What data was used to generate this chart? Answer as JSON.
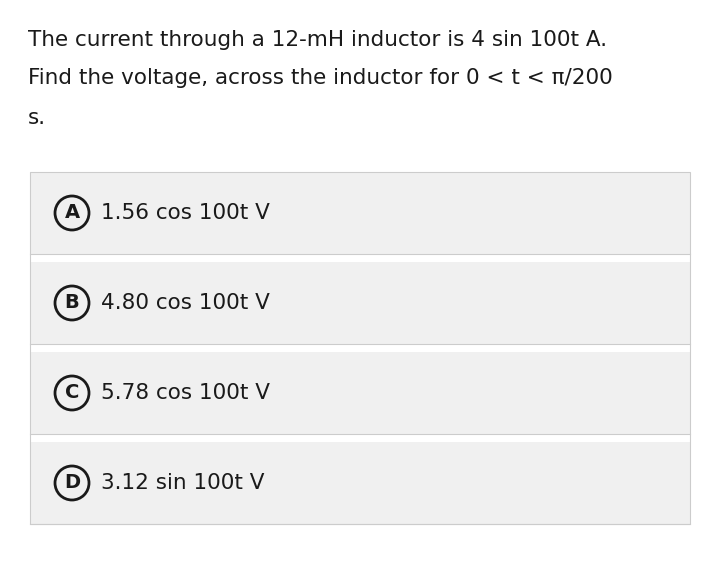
{
  "question_line1": "The current through a 12-mH inductor is 4 sin 100t A.",
  "question_line2": "Find the voltage, across the inductor for 0 < t < π/200",
  "question_line3": "s.",
  "options": [
    {
      "label": "A",
      "text": "1.56 cos 100t V"
    },
    {
      "label": "B",
      "text": "4.80 cos 100t V"
    },
    {
      "label": "C",
      "text": "5.78 cos 100t V"
    },
    {
      "label": "D",
      "text": "3.12 sin 100t V"
    }
  ],
  "bg_color": "#ffffff",
  "option_bg_color": "#f0f0f0",
  "option_border_color": "#cccccc",
  "text_color": "#1a1a1a",
  "circle_border_color": "#1a1a1a",
  "question_fontsize": 15.5,
  "option_fontsize": 15.5,
  "label_fontsize": 14,
  "fig_width": 7.19,
  "fig_height": 5.77,
  "dpi": 100
}
